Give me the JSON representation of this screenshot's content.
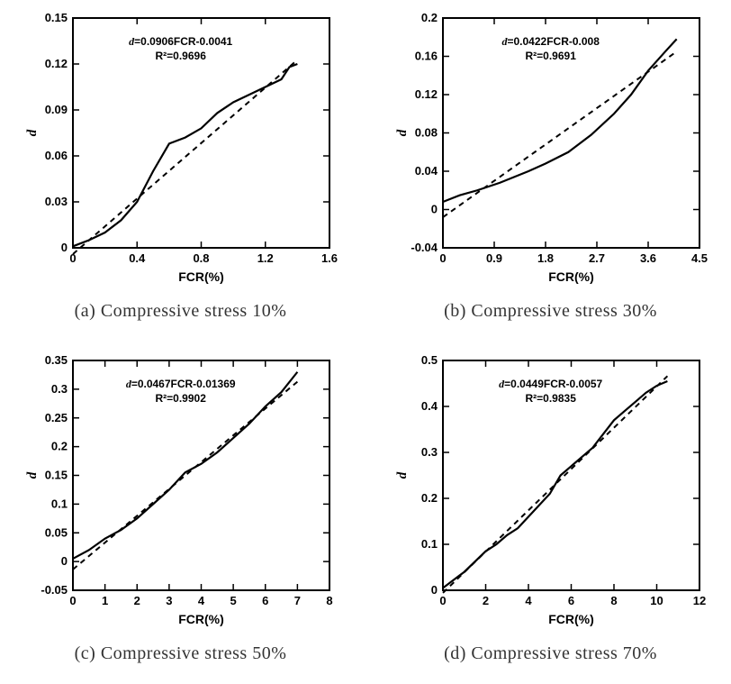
{
  "panels": [
    {
      "id": "a",
      "caption": "(a) Compressive stress 10%",
      "type": "line",
      "xlabel": "FCR(%)",
      "ylabel": "d",
      "xlim": [
        0,
        1.6
      ],
      "ylim": [
        0,
        0.15
      ],
      "xticks": [
        0,
        0.4,
        0.8,
        1.2,
        1.6
      ],
      "yticks": [
        0,
        0.03,
        0.06,
        0.09,
        0.12,
        0.15
      ],
      "xtick_labels": [
        "0",
        "0.4",
        "0.8",
        "1.2",
        "1.6"
      ],
      "ytick_labels": [
        "0",
        "0.03",
        "0.06",
        "0.09",
        "0.12",
        "0.15"
      ],
      "eq": [
        "d",
        "=0.0906FCR-0.0041"
      ],
      "r2": "R²=0.9696",
      "data_line": [
        [
          0,
          0.001
        ],
        [
          0.1,
          0.005
        ],
        [
          0.2,
          0.01
        ],
        [
          0.3,
          0.018
        ],
        [
          0.4,
          0.03
        ],
        [
          0.5,
          0.05
        ],
        [
          0.6,
          0.068
        ],
        [
          0.7,
          0.072
        ],
        [
          0.8,
          0.078
        ],
        [
          0.9,
          0.088
        ],
        [
          1.0,
          0.095
        ],
        [
          1.1,
          0.1
        ],
        [
          1.2,
          0.105
        ],
        [
          1.3,
          0.11
        ],
        [
          1.35,
          0.118
        ],
        [
          1.4,
          0.12
        ]
      ],
      "fit_line": [
        [
          0,
          -0.0041
        ],
        [
          1.4,
          0.1227
        ]
      ],
      "tick_fontsize": 13,
      "label_fontsize": 14,
      "eq_fontsize": 12,
      "line_color": "#000",
      "fit_color": "#000",
      "dash": "6,5",
      "line_width": 2.2,
      "fit_width": 2
    },
    {
      "id": "b",
      "caption": "(b) Compressive stress 30%",
      "type": "line",
      "xlabel": "FCR(%)",
      "ylabel": "d",
      "xlim": [
        0,
        4.5
      ],
      "ylim": [
        -0.04,
        0.2
      ],
      "xticks": [
        0,
        0.9,
        1.8,
        2.7,
        3.6,
        4.5
      ],
      "yticks": [
        -0.04,
        0,
        0.04,
        0.08,
        0.12,
        0.16,
        0.2
      ],
      "xtick_labels": [
        "0",
        "0.9",
        "1.8",
        "2.7",
        "3.6",
        "4.5"
      ],
      "ytick_labels": [
        "-0.04",
        "0",
        "0.04",
        "0.08",
        "0.12",
        "0.16",
        "0.2"
      ],
      "eq": [
        "d",
        "=0.0422FCR-0.008"
      ],
      "r2": "R²=0.9691",
      "data_line": [
        [
          0,
          0.008
        ],
        [
          0.3,
          0.015
        ],
        [
          0.6,
          0.02
        ],
        [
          1.0,
          0.028
        ],
        [
          1.5,
          0.04
        ],
        [
          1.8,
          0.048
        ],
        [
          2.2,
          0.06
        ],
        [
          2.6,
          0.078
        ],
        [
          3.0,
          0.1
        ],
        [
          3.3,
          0.12
        ],
        [
          3.6,
          0.145
        ],
        [
          3.9,
          0.165
        ],
        [
          4.1,
          0.178
        ]
      ],
      "fit_line": [
        [
          0,
          -0.008
        ],
        [
          4.1,
          0.165
        ]
      ],
      "tick_fontsize": 13,
      "label_fontsize": 14,
      "eq_fontsize": 12,
      "line_color": "#000",
      "fit_color": "#000",
      "dash": "6,5",
      "line_width": 2.2,
      "fit_width": 2
    },
    {
      "id": "c",
      "caption": "(c) Compressive stress 50%",
      "type": "line",
      "xlabel": "FCR(%)",
      "ylabel": "d",
      "xlim": [
        0,
        8
      ],
      "ylim": [
        -0.05,
        0.35
      ],
      "xticks": [
        0,
        1,
        2,
        3,
        4,
        5,
        6,
        7,
        8
      ],
      "yticks": [
        -0.05,
        0,
        0.05,
        0.1,
        0.15,
        0.2,
        0.25,
        0.3,
        0.35
      ],
      "xtick_labels": [
        "0",
        "1",
        "2",
        "3",
        "4",
        "5",
        "6",
        "7",
        "8"
      ],
      "ytick_labels": [
        "-0.05",
        "0",
        "0.05",
        "0.1",
        "0.15",
        "0.2",
        "0.25",
        "0.3",
        "0.35"
      ],
      "eq": [
        "d",
        "=0.0467FCR-0.01369"
      ],
      "r2": "R²=0.9902",
      "data_line": [
        [
          0,
          0.005
        ],
        [
          0.5,
          0.02
        ],
        [
          1.0,
          0.04
        ],
        [
          1.5,
          0.055
        ],
        [
          2.0,
          0.075
        ],
        [
          2.5,
          0.1
        ],
        [
          3.0,
          0.125
        ],
        [
          3.5,
          0.155
        ],
        [
          4.0,
          0.17
        ],
        [
          4.5,
          0.19
        ],
        [
          5.0,
          0.215
        ],
        [
          5.5,
          0.24
        ],
        [
          6.0,
          0.27
        ],
        [
          6.5,
          0.295
        ],
        [
          7.0,
          0.33
        ]
      ],
      "fit_line": [
        [
          0,
          -0.01369
        ],
        [
          7.0,
          0.313
        ]
      ],
      "tick_fontsize": 13,
      "label_fontsize": 14,
      "eq_fontsize": 12,
      "line_color": "#000",
      "fit_color": "#000",
      "dash": "6,5",
      "line_width": 2.2,
      "fit_width": 2
    },
    {
      "id": "d",
      "caption": "(d) Compressive stress 70%",
      "type": "line",
      "xlabel": "FCR(%)",
      "ylabel": "d",
      "xlim": [
        0,
        12
      ],
      "ylim": [
        0,
        0.5
      ],
      "xticks": [
        0,
        2,
        4,
        6,
        8,
        10,
        12
      ],
      "yticks": [
        0,
        0.1,
        0.2,
        0.3,
        0.4,
        0.5
      ],
      "xtick_labels": [
        "0",
        "2",
        "4",
        "6",
        "8",
        "10",
        "12"
      ],
      "ytick_labels": [
        "0",
        "0.1",
        "0.2",
        "0.3",
        "0.4",
        "0.5"
      ],
      "eq": [
        "d",
        "=0.0449FCR-0.0057"
      ],
      "r2": "R²=0.9835",
      "data_line": [
        [
          0,
          0.005
        ],
        [
          1.0,
          0.04
        ],
        [
          2.0,
          0.085
        ],
        [
          2.5,
          0.1
        ],
        [
          3.0,
          0.12
        ],
        [
          3.5,
          0.135
        ],
        [
          4.0,
          0.16
        ],
        [
          5.0,
          0.21
        ],
        [
          5.5,
          0.25
        ],
        [
          6.0,
          0.27
        ],
        [
          6.5,
          0.29
        ],
        [
          7.0,
          0.31
        ],
        [
          7.5,
          0.34
        ],
        [
          8.0,
          0.37
        ],
        [
          8.5,
          0.39
        ],
        [
          9.0,
          0.41
        ],
        [
          9.5,
          0.43
        ],
        [
          10.0,
          0.445
        ],
        [
          10.5,
          0.455
        ]
      ],
      "fit_line": [
        [
          0,
          -0.0057
        ],
        [
          10.5,
          0.466
        ]
      ],
      "tick_fontsize": 13,
      "label_fontsize": 14,
      "eq_fontsize": 12,
      "line_color": "#000",
      "fit_color": "#000",
      "dash": "6,5",
      "line_width": 2.2,
      "fit_width": 2
    }
  ]
}
